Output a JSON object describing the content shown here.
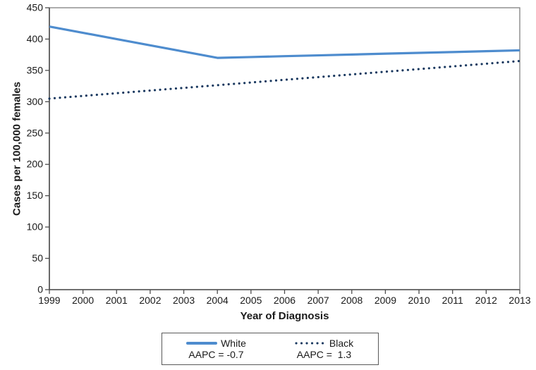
{
  "chart_data": {
    "type": "line",
    "title": "",
    "xlabel": "Year of Diagnosis",
    "ylabel": "Cases per 100,000 females",
    "x": [
      1999,
      2000,
      2001,
      2002,
      2003,
      2004,
      2005,
      2006,
      2007,
      2008,
      2009,
      2010,
      2011,
      2012,
      2013
    ],
    "x_tick_labels": [
      "1999",
      "2000",
      "2001",
      "2002",
      "2003",
      "2004",
      "2005",
      "2006",
      "2007",
      "2008",
      "2009",
      "2010",
      "2011",
      "2012",
      "2013"
    ],
    "ylim": [
      0,
      450
    ],
    "ytick_step": 50,
    "y_tick_labels": [
      "0",
      "50",
      "100",
      "150",
      "200",
      "250",
      "300",
      "350",
      "400",
      "450"
    ],
    "grid": false,
    "legend_position": "bottom-center",
    "series": [
      {
        "name": "White",
        "line_style": "solid",
        "color": "#4e8cce",
        "aapc_label": "AAPC = -0.7",
        "values": [
          420,
          410,
          400,
          390,
          380,
          370,
          371.3,
          372.7,
          374,
          375.3,
          376.7,
          378,
          379.3,
          380.7,
          382
        ]
      },
      {
        "name": "Black",
        "line_style": "dotted",
        "color": "#17375e",
        "aapc_label": "AAPC =  1.3",
        "values": [
          305,
          309.3,
          313.6,
          317.9,
          322.1,
          326.4,
          330.7,
          335,
          339.3,
          343.6,
          347.9,
          352.1,
          356.4,
          360.7,
          365
        ]
      }
    ],
    "colors": {
      "plot_border": "#7f7f7f",
      "axis": "#4d4d4d",
      "tick_label": "#1a1a1a"
    }
  }
}
